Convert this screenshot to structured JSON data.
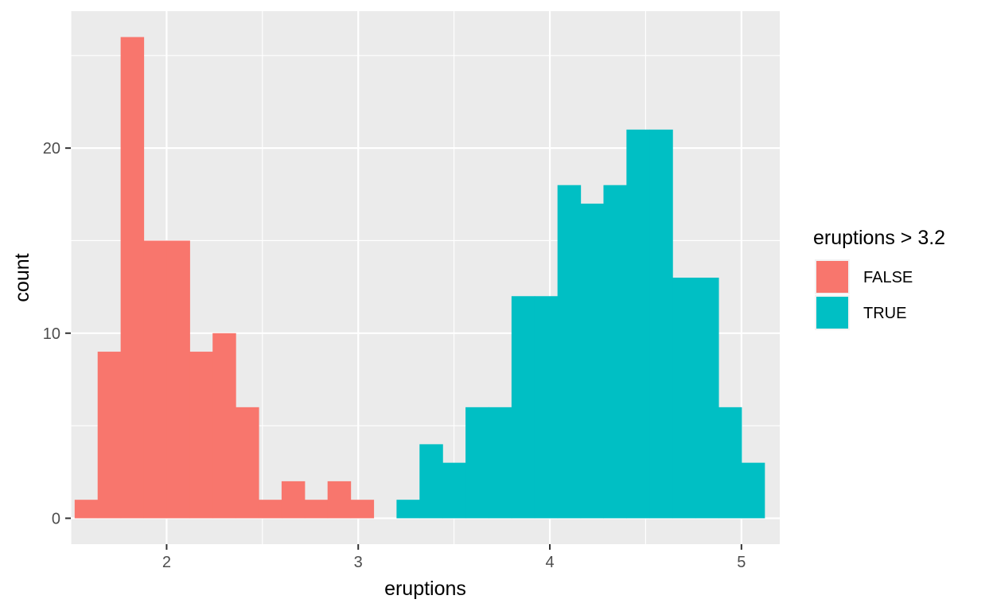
{
  "chart_data": {
    "type": "bar",
    "title": "",
    "xlabel": "eruptions",
    "ylabel": "count",
    "xlim": [
      1.5,
      5.2
    ],
    "ylim": [
      -1.4,
      27.4
    ],
    "x_ticks": [
      2,
      3,
      4,
      5
    ],
    "x_tick_labels": [
      "2",
      "3",
      "4",
      "5"
    ],
    "y_ticks": [
      0,
      10,
      20
    ],
    "y_tick_labels": [
      "0",
      "10",
      "20"
    ],
    "grid": true,
    "legend": {
      "title": "eruptions > 3.2",
      "placement": "right"
    },
    "bin_width": 0.12,
    "series": [
      {
        "name": "FALSE",
        "color": "#F8766D",
        "bins": [
          {
            "x0": 1.52,
            "x1": 1.64,
            "count": 1
          },
          {
            "x0": 1.64,
            "x1": 1.76,
            "count": 9
          },
          {
            "x0": 1.76,
            "x1": 1.88,
            "count": 26
          },
          {
            "x0": 1.88,
            "x1": 2.0,
            "count": 15
          },
          {
            "x0": 2.0,
            "x1": 2.12,
            "count": 15
          },
          {
            "x0": 2.12,
            "x1": 2.24,
            "count": 9
          },
          {
            "x0": 2.24,
            "x1": 2.36,
            "count": 10
          },
          {
            "x0": 2.36,
            "x1": 2.48,
            "count": 6
          },
          {
            "x0": 2.48,
            "x1": 2.6,
            "count": 1
          },
          {
            "x0": 2.6,
            "x1": 2.72,
            "count": 2
          },
          {
            "x0": 2.72,
            "x1": 2.84,
            "count": 1
          },
          {
            "x0": 2.84,
            "x1": 2.96,
            "count": 2
          },
          {
            "x0": 2.96,
            "x1": 3.08,
            "count": 1
          }
        ]
      },
      {
        "name": "TRUE",
        "color": "#00BFC4",
        "bins": [
          {
            "x0": 3.2,
            "x1": 3.32,
            "count": 1
          },
          {
            "x0": 3.32,
            "x1": 3.44,
            "count": 4
          },
          {
            "x0": 3.44,
            "x1": 3.56,
            "count": 3
          },
          {
            "x0": 3.56,
            "x1": 3.68,
            "count": 6
          },
          {
            "x0": 3.68,
            "x1": 3.8,
            "count": 6
          },
          {
            "x0": 3.8,
            "x1": 3.92,
            "count": 12
          },
          {
            "x0": 3.92,
            "x1": 4.04,
            "count": 12
          },
          {
            "x0": 4.04,
            "x1": 4.16,
            "count": 18
          },
          {
            "x0": 4.16,
            "x1": 4.28,
            "count": 17
          },
          {
            "x0": 4.28,
            "x1": 4.4,
            "count": 18
          },
          {
            "x0": 4.4,
            "x1": 4.52,
            "count": 21
          },
          {
            "x0": 4.52,
            "x1": 4.64,
            "count": 21
          },
          {
            "x0": 4.64,
            "x1": 4.76,
            "count": 13
          },
          {
            "x0": 4.76,
            "x1": 4.88,
            "count": 13
          },
          {
            "x0": 4.88,
            "x1": 5.0,
            "count": 6
          },
          {
            "x0": 5.0,
            "x1": 5.12,
            "count": 3
          }
        ]
      }
    ]
  }
}
